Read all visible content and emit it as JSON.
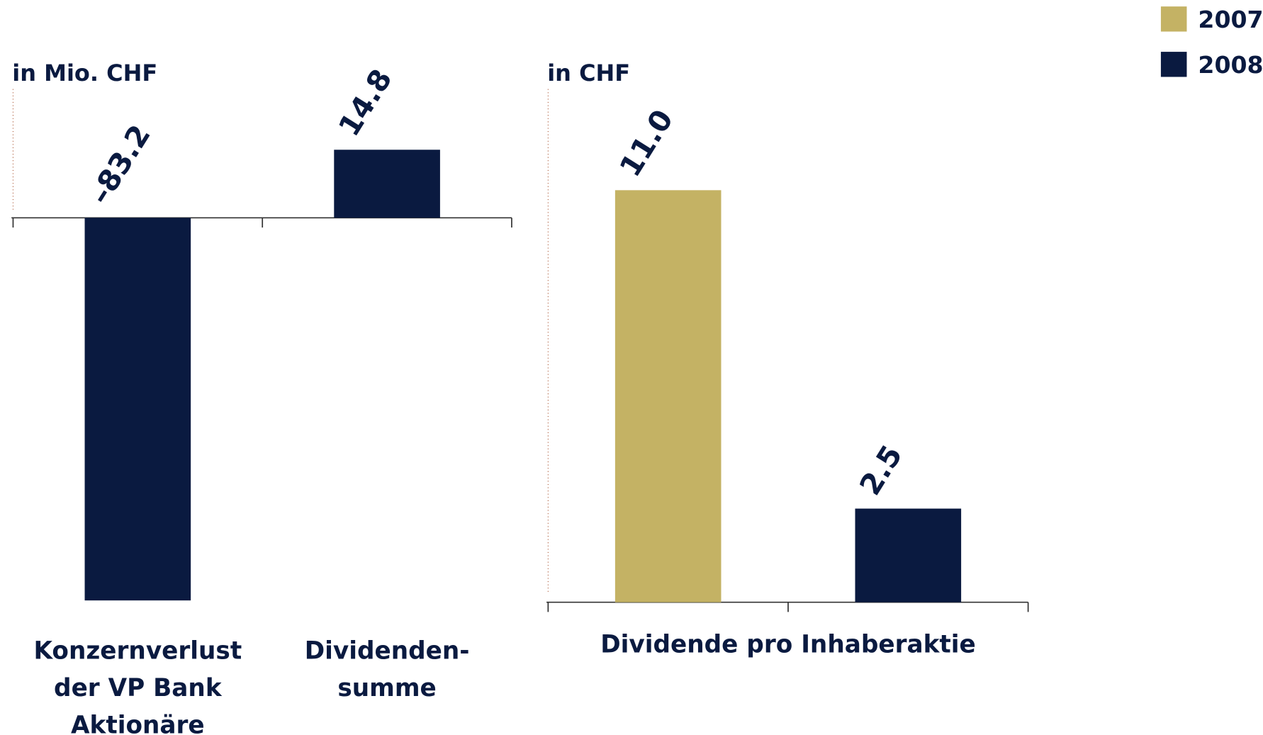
{
  "chart_data": [
    {
      "type": "bar",
      "y_label": "in Mio. CHF",
      "categories": [
        "Konzernverlust der VP Bank Aktionäre",
        "Dividenden-summe"
      ],
      "series": [
        {
          "color": "#0a1a40",
          "values": [
            -83.2,
            14.8
          ],
          "value_labels": [
            "–83.2",
            "14.8"
          ]
        }
      ],
      "ylim": [
        -85,
        28
      ]
    },
    {
      "type": "bar",
      "y_label": "in CHF",
      "categories": [
        "Dividende pro Inhaberaktie"
      ],
      "series": [
        {
          "name": "2007",
          "color": "#c4b264",
          "values": [
            11.0
          ],
          "value_labels": [
            "11.0"
          ]
        },
        {
          "name": "2008",
          "color": "#0a1a40",
          "values": [
            2.5
          ],
          "value_labels": [
            "2.5"
          ]
        }
      ],
      "ylim": [
        0,
        13.7
      ],
      "legend": "top-right"
    }
  ]
}
